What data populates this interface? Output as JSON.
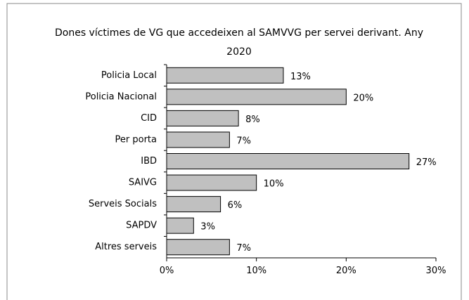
{
  "chart_data": {
    "type": "bar",
    "orientation": "horizontal",
    "title": "Dones víctimes de VG que accedeixen al SAMVVG per servei derivant. Any 2020",
    "categories": [
      "Policia Local",
      "Policia Nacional",
      "CID",
      "Per porta",
      "IBD",
      "SAIVG",
      "Serveis Socials",
      "SAPDV",
      "Altres serveis"
    ],
    "values": [
      13,
      20,
      8,
      7,
      27,
      10,
      6,
      3,
      7
    ],
    "value_labels": [
      "13%",
      "20%",
      "8%",
      "7%",
      "27%",
      "10%",
      "6%",
      "3%",
      "7%"
    ],
    "color": "#c0c0c0",
    "xlim": [
      0,
      30
    ],
    "xticks": [
      {
        "value": 0,
        "label": "0%"
      },
      {
        "value": 10,
        "label": "10%"
      },
      {
        "value": 20,
        "label": "20%"
      },
      {
        "value": 30,
        "label": "30%"
      }
    ],
    "grid": false
  }
}
